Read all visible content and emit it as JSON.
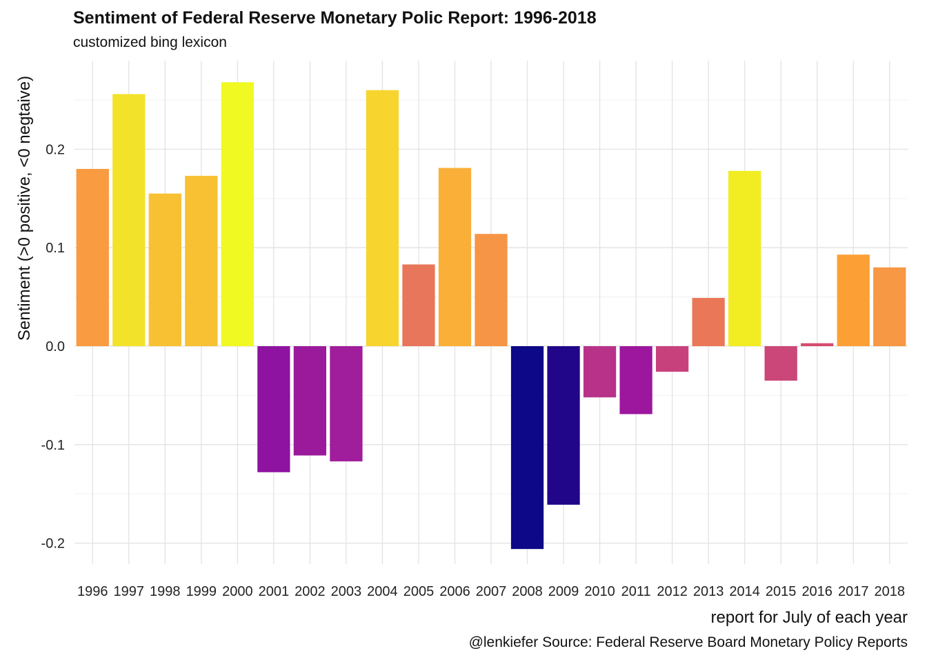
{
  "chart_data": {
    "type": "bar",
    "title": "Sentiment of Federal Reserve Monetary Polic Report: 1996-2018",
    "subtitle": "customized bing lexicon",
    "xlabel": "report for July of each year",
    "ylabel": "Sentiment (>0 positive, <0 negtaive)",
    "caption": "@lenkiefer Source: Federal Reserve Board Monetary Policy Reports",
    "categories": [
      "1996",
      "1997",
      "1998",
      "1999",
      "2000",
      "2001",
      "2002",
      "2003",
      "2004",
      "2005",
      "2006",
      "2007",
      "2008",
      "2009",
      "2010",
      "2011",
      "2012",
      "2013",
      "2014",
      "2015",
      "2016",
      "2017",
      "2018"
    ],
    "values": [
      0.18,
      0.256,
      0.155,
      0.173,
      0.268,
      -0.128,
      -0.111,
      -0.117,
      0.26,
      0.083,
      0.181,
      0.114,
      -0.206,
      -0.161,
      -0.052,
      -0.069,
      -0.026,
      0.049,
      0.178,
      -0.035,
      0.003,
      0.093,
      0.08
    ],
    "colors": [
      "#f89b41",
      "#f3e22a",
      "#f8c133",
      "#f8c133",
      "#f0f921",
      "#8d13a0",
      "#9b1a9b",
      "#a01e9c",
      "#f8d42e",
      "#e8765a",
      "#fab038",
      "#f69545",
      "#0d0887",
      "#210689",
      "#b83289",
      "#9c179e",
      "#c7427d",
      "#ea7858",
      "#f1ed22",
      "#cb4679",
      "#d44d6e",
      "#fca036",
      "#f79844"
    ],
    "yticks": [
      "-0.2",
      "-0.1",
      "0.0",
      "0.1",
      "0.2"
    ],
    "ylim": [
      -0.22,
      0.29
    ],
    "grid": true,
    "legend": "none"
  }
}
